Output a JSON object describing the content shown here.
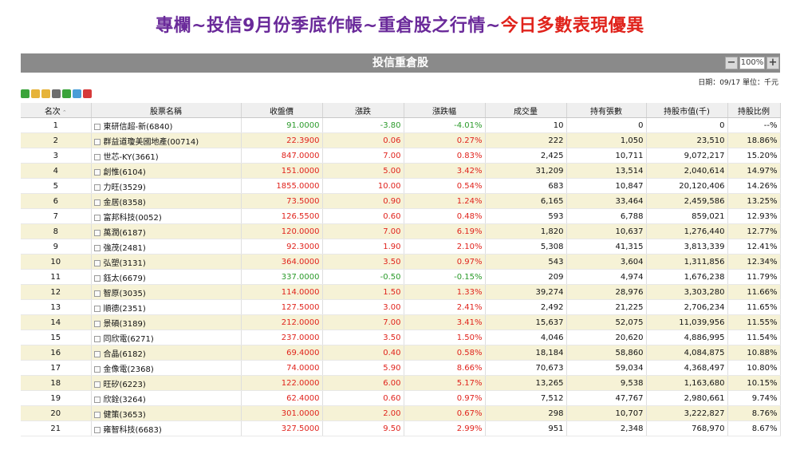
{
  "headline": {
    "part1": "專欄~投信9月份季底作帳~重倉股之行情~",
    "part2": "今日多數表現優異"
  },
  "panel": {
    "title": "投信重倉股",
    "zoom": {
      "minus": "−",
      "value": "100%",
      "plus": "+"
    },
    "date_info": "日期：09/17 單位：千元"
  },
  "toolbar": [
    {
      "icon": "refresh-icon",
      "color": "#3aa33a"
    },
    {
      "icon": "lock-icon",
      "color": "#e6b33a"
    },
    {
      "icon": "unlock-icon",
      "color": "#e6b33a"
    },
    {
      "icon": "print-icon",
      "color": "#6d6d6d"
    },
    {
      "icon": "add-icon",
      "color": "#3aa33a"
    },
    {
      "icon": "check-icon",
      "color": "#4a9ed8"
    },
    {
      "icon": "delete-icon",
      "color": "#d63a3a"
    }
  ],
  "table": {
    "headers": [
      "名次",
      "股票名稱",
      "收盤價",
      "漲跌",
      "漲跌幅",
      "成交量",
      "持有張數",
      "持股市值(千)",
      "持股比例"
    ],
    "rows": [
      [
        "1",
        "東研信超-新(6840)",
        "91.0000",
        "-3.80",
        "-4.01%",
        "10",
        "0",
        "0",
        "--%"
      ],
      [
        "2",
        "群益道瓊美國地產(00714)",
        "22.3900",
        "0.06",
        "0.27%",
        "222",
        "1,050",
        "23,510",
        "18.86%"
      ],
      [
        "3",
        "世芯-KY(3661)",
        "847.0000",
        "7.00",
        "0.83%",
        "2,425",
        "10,711",
        "9,072,217",
        "15.20%"
      ],
      [
        "4",
        "創惟(6104)",
        "151.0000",
        "5.00",
        "3.42%",
        "31,209",
        "13,514",
        "2,040,614",
        "14.97%"
      ],
      [
        "5",
        "力旺(3529)",
        "1855.0000",
        "10.00",
        "0.54%",
        "683",
        "10,847",
        "20,120,406",
        "14.26%"
      ],
      [
        "6",
        "金居(8358)",
        "73.5000",
        "0.90",
        "1.24%",
        "6,165",
        "33,464",
        "2,459,586",
        "13.25%"
      ],
      [
        "7",
        "富邦科技(0052)",
        "126.5500",
        "0.60",
        "0.48%",
        "593",
        "6,788",
        "859,021",
        "12.93%"
      ],
      [
        "8",
        "萬潤(6187)",
        "120.0000",
        "7.00",
        "6.19%",
        "1,820",
        "10,637",
        "1,276,440",
        "12.77%"
      ],
      [
        "9",
        "強茂(2481)",
        "92.3000",
        "1.90",
        "2.10%",
        "5,308",
        "41,315",
        "3,813,339",
        "12.41%"
      ],
      [
        "10",
        "弘塑(3131)",
        "364.0000",
        "3.50",
        "0.97%",
        "543",
        "3,604",
        "1,311,856",
        "12.34%"
      ],
      [
        "11",
        "鈺太(6679)",
        "337.0000",
        "-0.50",
        "-0.15%",
        "209",
        "4,974",
        "1,676,238",
        "11.79%"
      ],
      [
        "12",
        "智原(3035)",
        "114.0000",
        "1.50",
        "1.33%",
        "39,274",
        "28,976",
        "3,303,280",
        "11.66%"
      ],
      [
        "13",
        "順德(2351)",
        "127.5000",
        "3.00",
        "2.41%",
        "2,492",
        "21,225",
        "2,706,234",
        "11.65%"
      ],
      [
        "14",
        "景碩(3189)",
        "212.0000",
        "7.00",
        "3.41%",
        "15,637",
        "52,075",
        "11,039,956",
        "11.55%"
      ],
      [
        "15",
        "同欣電(6271)",
        "237.0000",
        "3.50",
        "1.50%",
        "4,046",
        "20,620",
        "4,886,995",
        "11.54%"
      ],
      [
        "16",
        "合晶(6182)",
        "69.4000",
        "0.40",
        "0.58%",
        "18,184",
        "58,860",
        "4,084,875",
        "10.88%"
      ],
      [
        "17",
        "金像電(2368)",
        "74.0000",
        "5.90",
        "8.66%",
        "70,673",
        "59,034",
        "4,368,497",
        "10.80%"
      ],
      [
        "18",
        "旺矽(6223)",
        "122.0000",
        "6.00",
        "5.17%",
        "13,265",
        "9,538",
        "1,163,680",
        "10.15%"
      ],
      [
        "19",
        "欣銓(3264)",
        "62.4000",
        "0.60",
        "0.97%",
        "7,512",
        "47,767",
        "2,980,661",
        "9.74%"
      ],
      [
        "20",
        "健策(3653)",
        "301.0000",
        "2.00",
        "0.67%",
        "298",
        "10,707",
        "3,222,827",
        "8.76%"
      ],
      [
        "21",
        "雍智科技(6683)",
        "327.5000",
        "9.50",
        "2.99%",
        "951",
        "2,348",
        "768,970",
        "8.67%"
      ]
    ]
  },
  "colors": {
    "up": "#e0231c",
    "down": "#2a9a2a",
    "even_row": "#f6f2d6",
    "titlebar": "#8a8a8a"
  }
}
